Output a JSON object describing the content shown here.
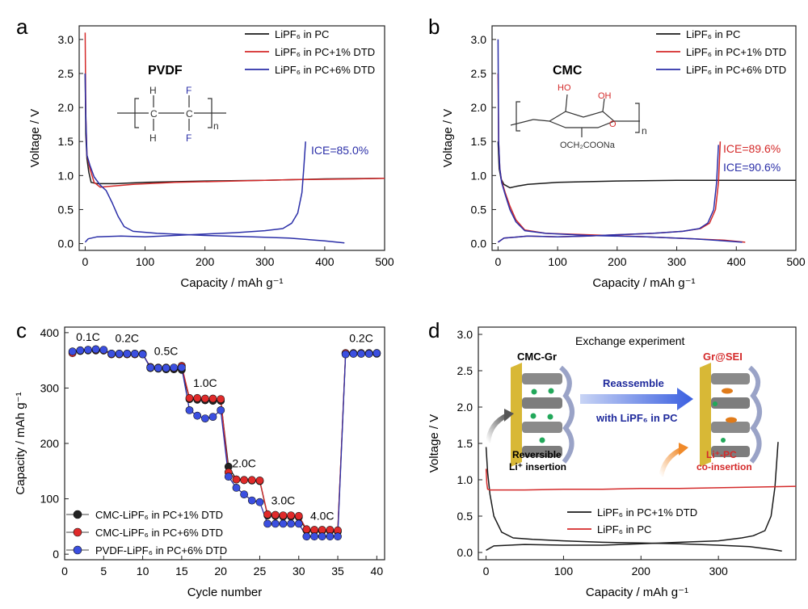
{
  "panels": {
    "a": {
      "letter": "a",
      "polymer": "PVDF",
      "ice": "ICE=85.0%",
      "struct": {
        "h1": "H",
        "h2": "H",
        "f1": "F",
        "f2": "F",
        "c1": "C",
        "c2": "C",
        "n": "n"
      }
    },
    "b": {
      "letter": "b",
      "polymer": "CMC",
      "ice1": "ICE=89.6%",
      "ice2": "ICE=90.6%",
      "struct": {
        "oh1": "HO",
        "oh2": "OH",
        "o_ring": "O",
        "sub": "OCH₂COONa",
        "n": "n"
      }
    },
    "c": {
      "letter": "c"
    },
    "d": {
      "letter": "d",
      "title": "Exchange experiment",
      "left_label": "CMC-Gr",
      "right_label": "Gr@SEI",
      "arrow_text1": "Reassemble",
      "arrow_text2": "with LiPF₆ in PC",
      "caption_left1": "Reversible",
      "caption_left2": "Li⁺ insertion",
      "caption_right1": "Li⁺-PC",
      "caption_right2": "co-insertion"
    }
  },
  "colors": {
    "black": "#1a1a1a",
    "red": "#d42a2a",
    "blue": "#2b2fa8",
    "blue_ball": "#3b4fe0",
    "red_ball": "#e02a2a"
  },
  "chart_data": [
    {
      "id": "a",
      "type": "line",
      "xlabel": "Capacity / mAh g⁻¹",
      "ylabel": "Voltage / V",
      "xlim": [
        -10,
        500
      ],
      "ylim": [
        -0.1,
        3.2
      ],
      "xticks": [
        0,
        100,
        200,
        300,
        400,
        500
      ],
      "yticks": [
        0.0,
        0.5,
        1.0,
        1.5,
        2.0,
        2.5,
        3.0
      ],
      "legend": [
        "LiPF₆ in PC",
        "LiPF₆ in PC+1% DTD",
        "LiPF₆ in PC+6% DTD"
      ],
      "series": [
        {
          "name": "LiPF₆ in PC",
          "color": "black",
          "points": [
            [
              0,
              2.5
            ],
            [
              1,
              1.6
            ],
            [
              3,
              1.25
            ],
            [
              6,
              1.05
            ],
            [
              10,
              0.9
            ],
            [
              20,
              0.88
            ],
            [
              50,
              0.88
            ],
            [
              100,
              0.9
            ],
            [
              200,
              0.92
            ],
            [
              300,
              0.93
            ],
            [
              400,
              0.95
            ],
            [
              500,
              0.96
            ]
          ]
        },
        {
          "name": "LiPF₆ in PC+1% DTD",
          "color": "red",
          "points": [
            [
              0,
              3.1
            ],
            [
              1,
              1.9
            ],
            [
              3,
              1.3
            ],
            [
              8,
              1.1
            ],
            [
              15,
              0.9
            ],
            [
              25,
              0.83
            ],
            [
              40,
              0.84
            ],
            [
              80,
              0.87
            ],
            [
              150,
              0.9
            ],
            [
              250,
              0.92
            ],
            [
              350,
              0.94
            ],
            [
              450,
              0.95
            ],
            [
              500,
              0.96
            ]
          ]
        },
        {
          "name": "LiPF₆ in PC+6% DTD",
          "color": "blue",
          "points": [
            [
              0,
              2.5
            ],
            [
              1,
              1.85
            ],
            [
              3,
              1.3
            ],
            [
              8,
              1.15
            ],
            [
              15,
              0.98
            ],
            [
              25,
              0.86
            ],
            [
              35,
              0.78
            ],
            [
              45,
              0.6
            ],
            [
              55,
              0.4
            ],
            [
              65,
              0.25
            ],
            [
              80,
              0.18
            ],
            [
              120,
              0.15
            ],
            [
              200,
              0.12
            ],
            [
              280,
              0.1
            ],
            [
              340,
              0.08
            ],
            [
              400,
              0.04
            ],
            [
              433,
              0.01
            ]
          ]
        },
        {
          "name": "PC+6% DTD delith",
          "color": "blue",
          "points": [
            [
              0,
              0.02
            ],
            [
              5,
              0.07
            ],
            [
              20,
              0.1
            ],
            [
              60,
              0.11
            ],
            [
              100,
              0.1
            ],
            [
              150,
              0.12
            ],
            [
              200,
              0.14
            ],
            [
              250,
              0.16
            ],
            [
              300,
              0.19
            ],
            [
              330,
              0.22
            ],
            [
              345,
              0.3
            ],
            [
              355,
              0.45
            ],
            [
              362,
              0.75
            ],
            [
              365,
              1.1
            ],
            [
              368,
              1.5
            ]
          ]
        }
      ]
    },
    {
      "id": "b",
      "type": "line",
      "xlabel": "Capacity / mAh g⁻¹",
      "ylabel": "Voltage / V",
      "xlim": [
        -10,
        500
      ],
      "ylim": [
        -0.1,
        3.2
      ],
      "xticks": [
        0,
        100,
        200,
        300,
        400,
        500
      ],
      "yticks": [
        0.0,
        0.5,
        1.0,
        1.5,
        2.0,
        2.5,
        3.0
      ],
      "legend": [
        "LiPF₆ in PC",
        "LiPF₆ in PC+1% DTD",
        "LiPF₆ in PC+6% DTD"
      ],
      "series": [
        {
          "name": "LiPF₆ in PC",
          "color": "black",
          "points": [
            [
              0,
              1.5
            ],
            [
              2,
              1.1
            ],
            [
              5,
              0.95
            ],
            [
              10,
              0.87
            ],
            [
              20,
              0.82
            ],
            [
              30,
              0.84
            ],
            [
              50,
              0.87
            ],
            [
              100,
              0.9
            ],
            [
              200,
              0.92
            ],
            [
              300,
              0.93
            ],
            [
              400,
              0.93
            ],
            [
              500,
              0.93
            ]
          ]
        },
        {
          "name": "LiPF₆ in PC+1% DTD",
          "color": "red",
          "points": [
            [
              0,
              2.5
            ],
            [
              1,
              1.5
            ],
            [
              3,
              1.1
            ],
            [
              6,
              0.92
            ],
            [
              12,
              0.75
            ],
            [
              20,
              0.55
            ],
            [
              30,
              0.35
            ],
            [
              45,
              0.2
            ],
            [
              80,
              0.15
            ],
            [
              150,
              0.13
            ],
            [
              250,
              0.1
            ],
            [
              330,
              0.07
            ],
            [
              380,
              0.05
            ],
            [
              415,
              0.02
            ]
          ]
        },
        {
          "name": "PC+1% DTD delith",
          "color": "red",
          "points": [
            [
              0,
              0.02
            ],
            [
              10,
              0.08
            ],
            [
              50,
              0.11
            ],
            [
              100,
              0.1
            ],
            [
              150,
              0.11
            ],
            [
              200,
              0.13
            ],
            [
              260,
              0.15
            ],
            [
              310,
              0.18
            ],
            [
              340,
              0.22
            ],
            [
              355,
              0.3
            ],
            [
              365,
              0.5
            ],
            [
              370,
              0.9
            ],
            [
              373,
              1.5
            ]
          ]
        },
        {
          "name": "LiPF₆ in PC+6% DTD",
          "color": "blue",
          "points": [
            [
              0,
              3.0
            ],
            [
              1,
              1.5
            ],
            [
              3,
              1.1
            ],
            [
              6,
              0.9
            ],
            [
              12,
              0.72
            ],
            [
              20,
              0.5
            ],
            [
              30,
              0.32
            ],
            [
              45,
              0.19
            ],
            [
              80,
              0.15
            ],
            [
              150,
              0.12
            ],
            [
              250,
              0.1
            ],
            [
              330,
              0.07
            ],
            [
              380,
              0.04
            ],
            [
              410,
              0.02
            ]
          ]
        },
        {
          "name": "PC+6% DTD delith",
          "color": "blue",
          "points": [
            [
              0,
              0.02
            ],
            [
              10,
              0.08
            ],
            [
              50,
              0.11
            ],
            [
              100,
              0.1
            ],
            [
              150,
              0.11
            ],
            [
              200,
              0.13
            ],
            [
              260,
              0.15
            ],
            [
              310,
              0.18
            ],
            [
              338,
              0.22
            ],
            [
              352,
              0.3
            ],
            [
              362,
              0.5
            ],
            [
              367,
              0.9
            ],
            [
              370,
              1.45
            ]
          ]
        }
      ]
    },
    {
      "id": "c",
      "type": "scatter",
      "xlabel": "Cycle number",
      "ylabel": "Capacity / mAh g⁻¹",
      "xlim": [
        0,
        41
      ],
      "ylim": [
        -10,
        410
      ],
      "xticks": [
        0,
        5,
        10,
        15,
        20,
        25,
        30,
        35,
        40
      ],
      "yticks": [
        0,
        100,
        200,
        300,
        400
      ],
      "rate_labels": [
        {
          "text": "0.1C",
          "x": 3,
          "y": 385
        },
        {
          "text": "0.2C",
          "x": 8,
          "y": 383
        },
        {
          "text": "0.5C",
          "x": 13,
          "y": 360
        },
        {
          "text": "1.0C",
          "x": 18,
          "y": 302
        },
        {
          "text": "2.0C",
          "x": 23,
          "y": 157
        },
        {
          "text": "3.0C",
          "x": 28,
          "y": 90
        },
        {
          "text": "4.0C",
          "x": 33,
          "y": 62
        },
        {
          "text": "0.2C",
          "x": 38,
          "y": 383
        }
      ],
      "legend": [
        "CMC-LiPF₆ in PC+1% DTD",
        "CMC-LiPF₆ in PC+6% DTD",
        "PVDF-LiPF₆ in PC+6% DTD"
      ],
      "series": [
        {
          "name": "CMC-LiPF₆ in PC+1% DTD",
          "color": "black",
          "values": [
            365,
            367,
            368,
            368,
            368,
            362,
            362,
            362,
            362,
            362,
            336,
            335,
            334,
            334,
            333,
            280,
            279,
            278,
            277,
            277,
            158,
            135,
            134,
            133,
            132,
            70,
            69,
            68,
            68,
            67,
            43,
            42,
            42,
            42,
            41,
            362,
            362,
            362,
            362,
            362
          ]
        },
        {
          "name": "CMC-LiPF₆ in PC+6% DTD",
          "color": "red",
          "values": [
            363,
            368,
            369,
            369,
            368,
            361,
            361,
            361,
            361,
            361,
            338,
            337,
            337,
            336,
            340,
            282,
            282,
            281,
            281,
            280,
            148,
            135,
            134,
            134,
            133,
            72,
            71,
            70,
            70,
            69,
            45,
            44,
            44,
            44,
            43,
            363,
            363,
            363,
            363,
            363
          ]
        },
        {
          "name": "PVDF-LiPF₆ in PC+6% DTD",
          "color": "blue",
          "values": [
            366,
            368,
            369,
            370,
            369,
            362,
            362,
            362,
            362,
            361,
            337,
            336,
            336,
            337,
            337,
            260,
            250,
            245,
            248,
            260,
            140,
            120,
            108,
            97,
            94,
            55,
            55,
            55,
            55,
            55,
            32,
            32,
            32,
            32,
            32,
            361,
            362,
            362,
            362,
            363
          ]
        }
      ]
    },
    {
      "id": "d",
      "type": "line",
      "xlabel": "Capacity / mAh g⁻¹",
      "ylabel": "Voltage / V",
      "xlim": [
        -10,
        400
      ],
      "ylim": [
        -0.1,
        3.1
      ],
      "xticks": [
        0,
        100,
        200,
        300
      ],
      "yticks": [
        0.0,
        0.5,
        1.0,
        1.5,
        2.0,
        2.5,
        3.0
      ],
      "legend": [
        "LiPF₆ in PC+1% DTD",
        "LiPF₆ in PC"
      ],
      "series": [
        {
          "name": "LiPF₆ in PC+1% DTD",
          "color": "black",
          "points": [
            [
              0,
              1.45
            ],
            [
              2,
              1.1
            ],
            [
              5,
              0.8
            ],
            [
              10,
              0.5
            ],
            [
              20,
              0.28
            ],
            [
              35,
              0.2
            ],
            [
              60,
              0.18
            ],
            [
              100,
              0.16
            ],
            [
              150,
              0.14
            ],
            [
              200,
              0.13
            ],
            [
              250,
              0.12
            ],
            [
              300,
              0.1
            ],
            [
              340,
              0.08
            ],
            [
              370,
              0.04
            ],
            [
              382,
              0.02
            ]
          ]
        },
        {
          "name": "PC+1% DTD delith",
          "color": "black",
          "points": [
            [
              0,
              0.03
            ],
            [
              10,
              0.09
            ],
            [
              50,
              0.11
            ],
            [
              100,
              0.1
            ],
            [
              150,
              0.1
            ],
            [
              200,
              0.12
            ],
            [
              250,
              0.14
            ],
            [
              300,
              0.16
            ],
            [
              330,
              0.2
            ],
            [
              345,
              0.23
            ],
            [
              360,
              0.3
            ],
            [
              368,
              0.5
            ],
            [
              373,
              0.9
            ],
            [
              377,
              1.52
            ]
          ]
        },
        {
          "name": "LiPF₆ in PC",
          "color": "red",
          "points": [
            [
              0,
              1.15
            ],
            [
              1,
              0.95
            ],
            [
              2,
              0.87
            ],
            [
              5,
              0.86
            ],
            [
              50,
              0.86
            ],
            [
              100,
              0.87
            ],
            [
              150,
              0.87
            ],
            [
              200,
              0.88
            ],
            [
              250,
              0.88
            ],
            [
              300,
              0.89
            ],
            [
              350,
              0.9
            ],
            [
              400,
              0.91
            ]
          ]
        }
      ]
    }
  ]
}
